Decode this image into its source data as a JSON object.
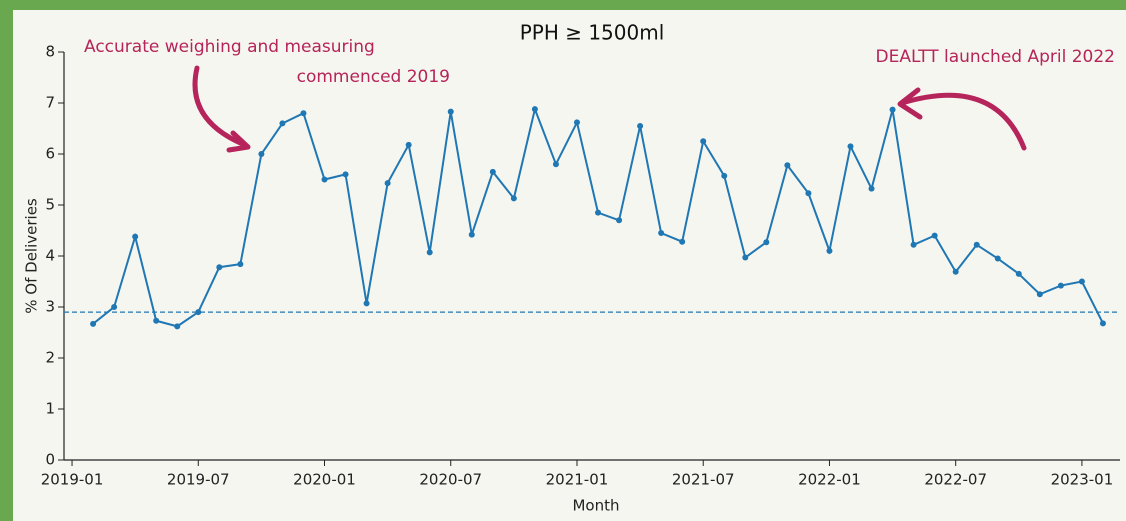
{
  "chart_data": {
    "type": "line",
    "title": "PPH ≥ 1500ml",
    "x_label": "Month",
    "y_label": "% Of Deliveries",
    "x": [
      "2019-02",
      "2019-03",
      "2019-04",
      "2019-05",
      "2019-06",
      "2019-07",
      "2019-08",
      "2019-09",
      "2019-10",
      "2019-11",
      "2019-12",
      "2020-01",
      "2020-02",
      "2020-03",
      "2020-04",
      "2020-05",
      "2020-06",
      "2020-07",
      "2020-08",
      "2020-09",
      "2020-10",
      "2020-11",
      "2020-12",
      "2021-01",
      "2021-02",
      "2021-03",
      "2021-04",
      "2021-05",
      "2021-06",
      "2021-07",
      "2021-08",
      "2021-09",
      "2021-10",
      "2021-11",
      "2021-12",
      "2022-01",
      "2022-02",
      "2022-03",
      "2022-04",
      "2022-05",
      "2022-06",
      "2022-07",
      "2022-08",
      "2022-09",
      "2022-10",
      "2022-11",
      "2022-12",
      "2023-01",
      "2023-02"
    ],
    "series": [
      {
        "color": "#1f77b4",
        "values": [
          2.67,
          3.0,
          4.38,
          2.73,
          2.62,
          2.9,
          3.78,
          3.84,
          6.0,
          6.6,
          6.8,
          5.5,
          5.6,
          3.07,
          5.43,
          6.18,
          4.07,
          6.83,
          4.42,
          5.65,
          5.13,
          6.88,
          5.8,
          6.62,
          4.85,
          4.7,
          6.55,
          4.45,
          4.28,
          6.25,
          5.57,
          3.97,
          4.27,
          5.78,
          5.23,
          4.1,
          6.15,
          5.32,
          6.87,
          4.22,
          4.4,
          3.69,
          4.22,
          3.95,
          3.65,
          3.25,
          3.42,
          3.5,
          2.68
        ]
      }
    ],
    "reference_line": {
      "value": 2.9,
      "color": "#1f77b4",
      "style": "dashed"
    },
    "xlim": [
      "2018-12",
      "2023-03"
    ],
    "xticks": [
      "2019-01",
      "2019-07",
      "2020-01",
      "2020-07",
      "2021-01",
      "2021-07",
      "2022-01",
      "2022-07",
      "2023-01"
    ],
    "ylim": [
      0,
      8
    ],
    "yticks": [
      0,
      1,
      2,
      3,
      4,
      5,
      6,
      7,
      8
    ],
    "annotations": [
      {
        "lines": [
          "Accurate weighing and measuring",
          "commenced 2019"
        ]
      },
      {
        "lines": [
          "DEALTT launched April 2022"
        ]
      }
    ]
  }
}
